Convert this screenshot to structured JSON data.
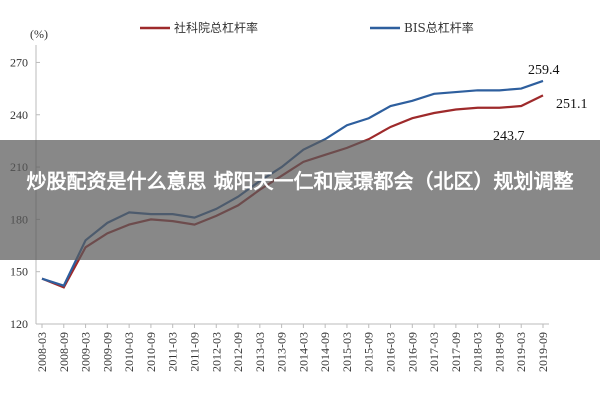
{
  "chart_data": {
    "type": "line",
    "y_unit": "(%)",
    "categories": [
      "2008-03",
      "2008-09",
      "2009-03",
      "2009-09",
      "2010-03",
      "2010-09",
      "2011-03",
      "2011-09",
      "2012-03",
      "2012-09",
      "2013-03",
      "2013-09",
      "2014-03",
      "2014-09",
      "2015-03",
      "2015-09",
      "2016-03",
      "2016-09",
      "2017-03",
      "2017-09",
      "2018-03",
      "2018-09",
      "2019-03",
      "2019-09"
    ],
    "series": [
      {
        "name": "社科院总杠杆率",
        "color": "#9e2a2b",
        "values": [
          146,
          141,
          164,
          172,
          177,
          180,
          179,
          177,
          182,
          188,
          197,
          205,
          213,
          217,
          221,
          226,
          233,
          238,
          241,
          243,
          244,
          244,
          245,
          251.1
        ]
      },
      {
        "name": "BIS总杠杆率",
        "color": "#2e5f9e",
        "values": [
          146,
          142,
          168,
          178,
          184,
          183,
          183,
          181,
          186,
          193,
          202,
          210,
          220,
          226,
          234,
          238,
          245,
          248,
          252,
          253,
          254,
          254,
          255,
          259.4
        ]
      }
    ],
    "annotations": [
      "259.4",
      "251.1",
      "243.7"
    ],
    "ylim": [
      120,
      280
    ],
    "yticks": [
      120,
      150,
      180,
      210,
      240,
      270
    ],
    "grid": false
  },
  "overlay": {
    "text": "炒股配资是什么意思 城阳天一仁和宸璟都会（北区）规划调整"
  }
}
